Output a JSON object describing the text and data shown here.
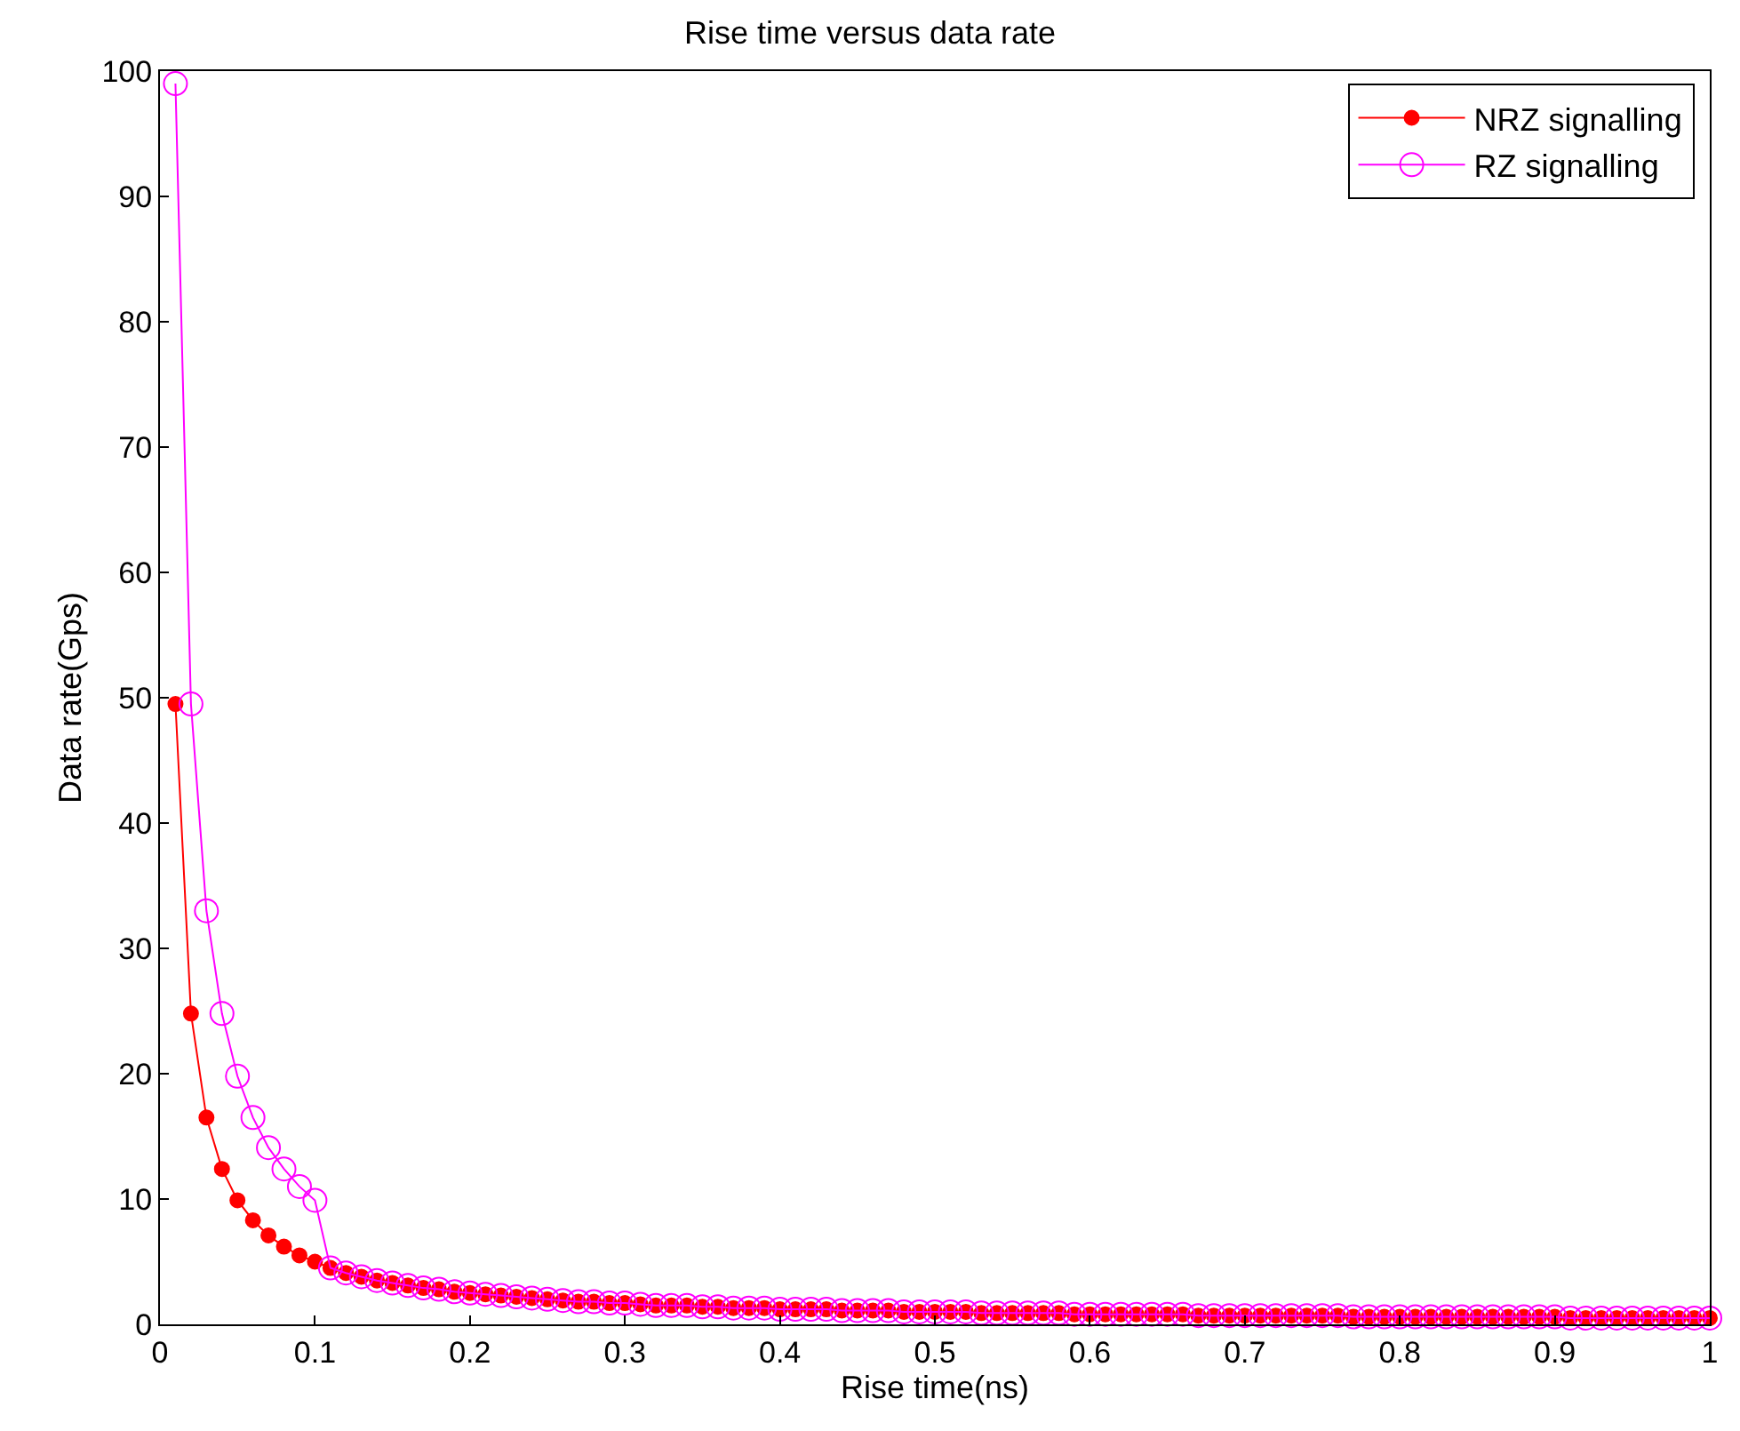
{
  "chart_data": {
    "type": "line",
    "title": "Rise time versus data rate",
    "xlabel": "Rise time(ns)",
    "ylabel": "Data rate(Gps)",
    "x": [
      0.01,
      0.02,
      0.03,
      0.04,
      0.05,
      0.06,
      0.07,
      0.08,
      0.09,
      0.1,
      0.11,
      0.12,
      0.13,
      0.14,
      0.15,
      0.16,
      0.17,
      0.18,
      0.19,
      0.2,
      0.21,
      0.22,
      0.23,
      0.24,
      0.25,
      0.26,
      0.27,
      0.28,
      0.29,
      0.3,
      0.31,
      0.32,
      0.33,
      0.34,
      0.35,
      0.36,
      0.37,
      0.38,
      0.39,
      0.4,
      0.41,
      0.42,
      0.43,
      0.44,
      0.45,
      0.46,
      0.47,
      0.48,
      0.49,
      0.5,
      0.51,
      0.52,
      0.53,
      0.54,
      0.55,
      0.56,
      0.57,
      0.58,
      0.59,
      0.6,
      0.61,
      0.62,
      0.63,
      0.64,
      0.65,
      0.66,
      0.67,
      0.68,
      0.69,
      0.7,
      0.71,
      0.72,
      0.73,
      0.74,
      0.75,
      0.76,
      0.77,
      0.78,
      0.79,
      0.8,
      0.81,
      0.82,
      0.83,
      0.84,
      0.85,
      0.86,
      0.87,
      0.88,
      0.89,
      0.9,
      0.91,
      0.92,
      0.93,
      0.94,
      0.95,
      0.96,
      0.97,
      0.98,
      0.99,
      1.0
    ],
    "series": [
      {
        "name": "NRZ signalling",
        "color": "#ff0000",
        "marker": "circle",
        "values": [
          49.5,
          24.8,
          16.5,
          12.4,
          9.9,
          8.3,
          7.1,
          6.2,
          5.5,
          5.0,
          4.5,
          4.1,
          3.8,
          3.5,
          3.3,
          3.1,
          2.9,
          2.8,
          2.6,
          2.5,
          2.4,
          2.3,
          2.2,
          2.1,
          2.0,
          1.9,
          1.8,
          1.8,
          1.7,
          1.7,
          1.6,
          1.5,
          1.5,
          1.5,
          1.4,
          1.4,
          1.3,
          1.3,
          1.3,
          1.2,
          1.2,
          1.2,
          1.2,
          1.1,
          1.1,
          1.1,
          1.1,
          1.0,
          1.0,
          1.0,
          1.0,
          1.0,
          0.9,
          0.9,
          0.9,
          0.9,
          0.9,
          0.9,
          0.8,
          0.8,
          0.8,
          0.8,
          0.8,
          0.8,
          0.8,
          0.8,
          0.7,
          0.7,
          0.7,
          0.7,
          0.7,
          0.7,
          0.7,
          0.7,
          0.7,
          0.7,
          0.6,
          0.6,
          0.6,
          0.6,
          0.6,
          0.6,
          0.6,
          0.6,
          0.6,
          0.6,
          0.6,
          0.6,
          0.6,
          0.6,
          0.5,
          0.5,
          0.5,
          0.5,
          0.5,
          0.5,
          0.5,
          0.5,
          0.5,
          0.5
        ]
      },
      {
        "name": "RZ signalling",
        "color": "#ff00ff",
        "marker": "circle-open",
        "values": [
          99.0,
          49.5,
          33.0,
          24.8,
          19.8,
          16.5,
          14.1,
          12.4,
          11.0,
          9.9,
          4.5,
          4.1,
          3.8,
          3.5,
          3.3,
          3.1,
          2.9,
          2.8,
          2.6,
          2.5,
          2.4,
          2.3,
          2.2,
          2.1,
          2.0,
          1.9,
          1.8,
          1.8,
          1.7,
          1.7,
          1.6,
          1.5,
          1.5,
          1.5,
          1.4,
          1.4,
          1.3,
          1.3,
          1.3,
          1.2,
          1.2,
          1.2,
          1.2,
          1.1,
          1.1,
          1.1,
          1.1,
          1.0,
          1.0,
          1.0,
          1.0,
          1.0,
          0.9,
          0.9,
          0.9,
          0.9,
          0.9,
          0.9,
          0.8,
          0.8,
          0.8,
          0.8,
          0.8,
          0.8,
          0.8,
          0.8,
          0.7,
          0.7,
          0.7,
          0.7,
          0.7,
          0.7,
          0.7,
          0.7,
          0.7,
          0.7,
          0.6,
          0.6,
          0.6,
          0.6,
          0.6,
          0.6,
          0.6,
          0.6,
          0.6,
          0.6,
          0.6,
          0.6,
          0.6,
          0.6,
          0.5,
          0.5,
          0.5,
          0.5,
          0.5,
          0.5,
          0.5,
          0.5,
          0.5,
          0.5
        ]
      }
    ],
    "xlim": [
      0,
      1
    ],
    "xticks": [
      0,
      0.1,
      0.2,
      0.3,
      0.4,
      0.5,
      0.6,
      0.7,
      0.8,
      0.9,
      1
    ],
    "ylim": [
      0,
      100
    ],
    "yticks": [
      0,
      10,
      20,
      30,
      40,
      50,
      60,
      70,
      80,
      90,
      100
    ],
    "legend": "top right",
    "line_style": "solid"
  }
}
